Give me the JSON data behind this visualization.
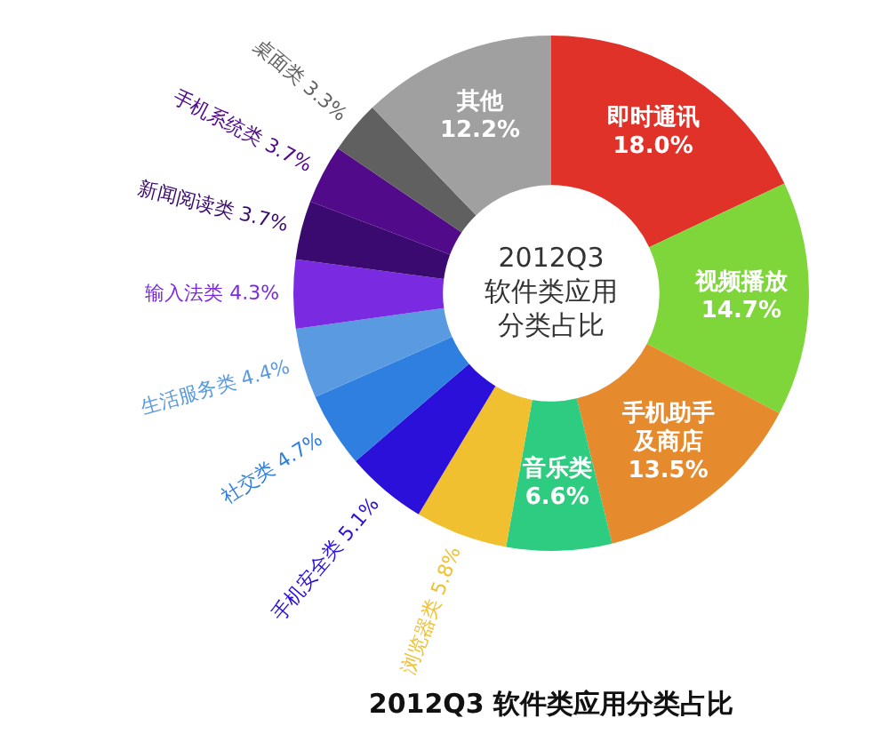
{
  "chart_data": {
    "type": "donut",
    "title": "2012Q3 软件类应用分类占比",
    "categories": [
      "即时通讯",
      "视频播放",
      "手机助手及商店",
      "音乐类",
      "浏览器类",
      "手机安全类",
      "社交类",
      "生活服务类",
      "输入法类",
      "新闻阅读类",
      "手机系统类",
      "桌面类",
      "其他"
    ],
    "values": [
      18.0,
      14.7,
      13.5,
      6.6,
      5.8,
      5.1,
      4.7,
      4.4,
      4.3,
      3.7,
      3.7,
      3.3,
      12.2
    ],
    "value_labels": [
      "18.0%",
      "14.7%",
      "13.5%",
      "6.6%",
      "5.8%",
      "5.1%",
      "4.7%",
      "4.4%",
      "4.3%",
      "3.7%",
      "3.7%",
      "3.3%",
      "12.2%"
    ],
    "colors": [
      "#e03228",
      "#7ed63a",
      "#e68a2e",
      "#2ecc80",
      "#f0c030",
      "#2a10d8",
      "#2e7fe0",
      "#5a9ae0",
      "#7a2ae0",
      "#3a0a70",
      "#500a8a",
      "#606060",
      "#a0a0a0"
    ],
    "annotations": [
      "2012Q3",
      "软件类应用",
      "分类占比"
    ],
    "legend": false
  }
}
